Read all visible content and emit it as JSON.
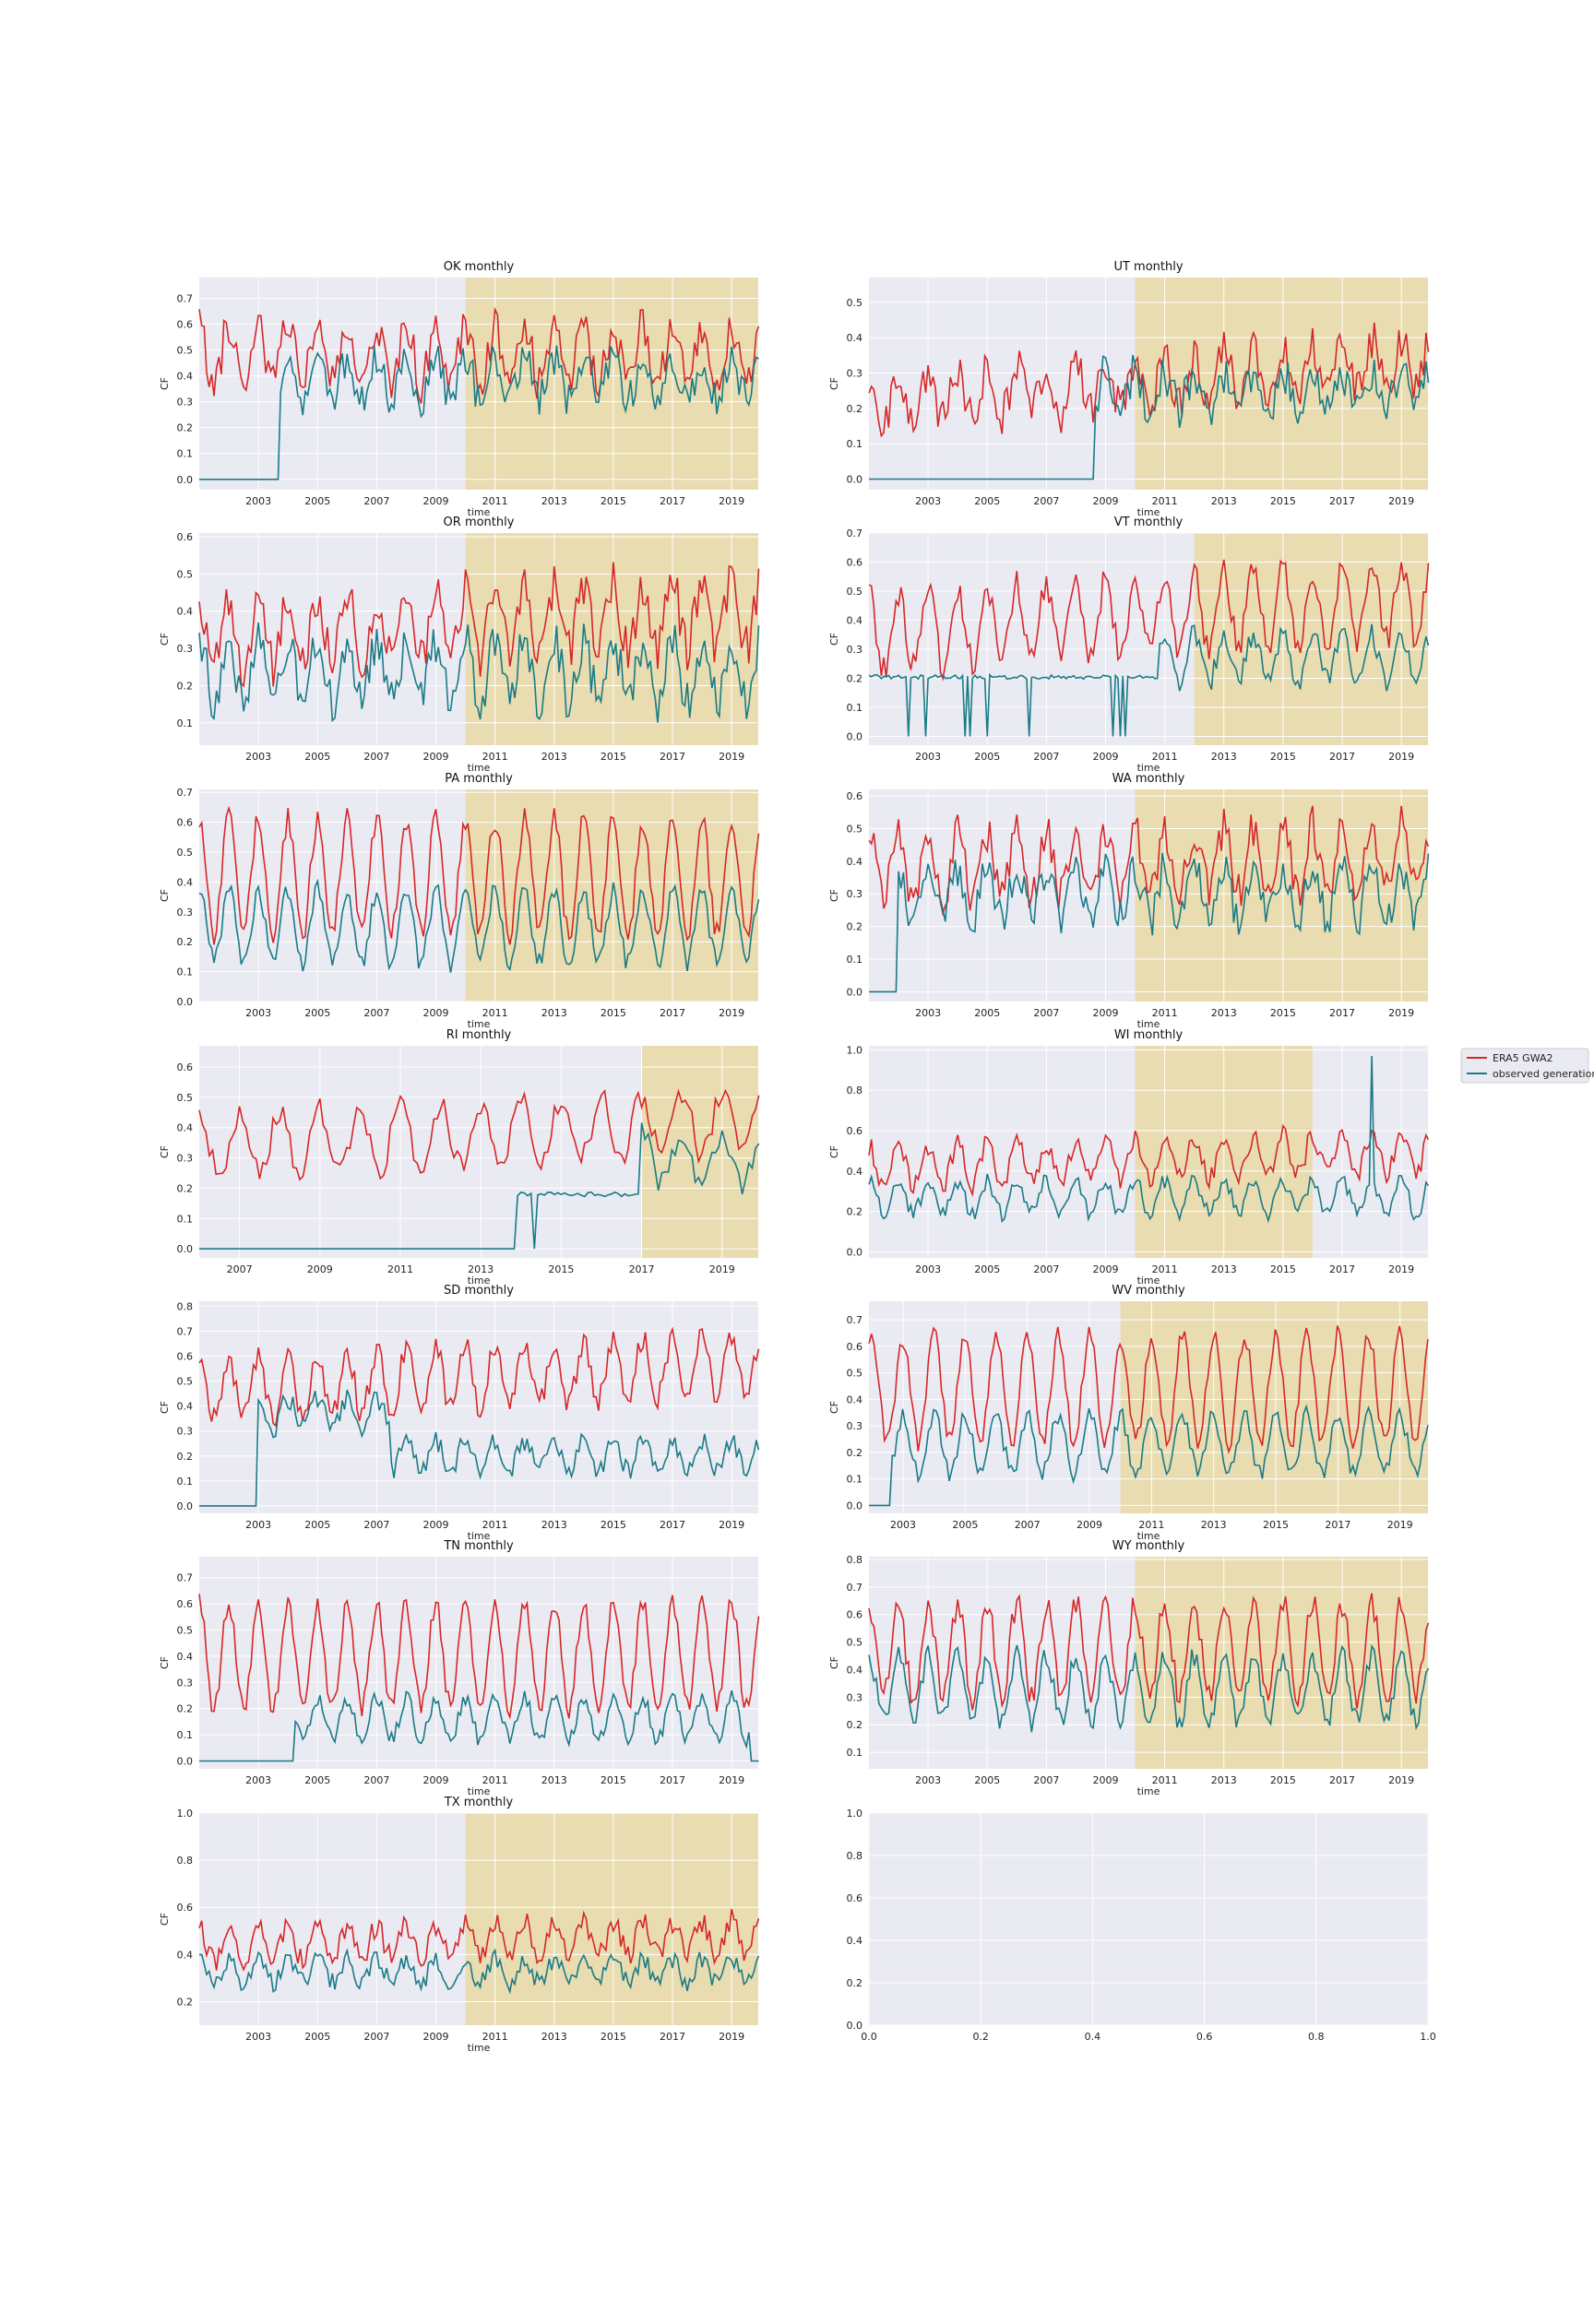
{
  "colors": {
    "era5": "#d62728",
    "observed": "#1a7b86",
    "highlight": "#e8dcb0",
    "axes_bg": "#eaeaf2",
    "grid": "#ffffff"
  },
  "legend": {
    "entries": [
      {
        "label": "ERA5 GWA2",
        "color": "#d62728"
      },
      {
        "label": "observed generation",
        "color": "#1a7b86"
      }
    ]
  },
  "chart_data": [
    {
      "type": "line",
      "title": "OK monthly",
      "xlabel": "time",
      "ylabel": "CF",
      "xlim": [
        2001.0,
        2019.9
      ],
      "ylim": [
        -0.04,
        0.78
      ],
      "yticks": [
        "0.0",
        "0.1",
        "0.2",
        "0.3",
        "0.4",
        "0.5",
        "0.6",
        "0.7"
      ],
      "xticks": [
        "2003",
        "2005",
        "2007",
        "2009",
        "2011",
        "2013",
        "2015",
        "2017",
        "2019"
      ],
      "highlight": [
        2010.0,
        2019.9
      ],
      "era5": {
        "base": 0.48,
        "amp": 0.11,
        "noise": 0.08,
        "trend": 0.0,
        "seed": 11
      },
      "observed": {
        "base": 0.39,
        "amp": 0.08,
        "noise": 0.07,
        "zero_until": 2003.75,
        "seed": 12
      },
      "series": [
        {
          "name": "ERA5 GWA2"
        },
        {
          "name": "observed generation"
        }
      ]
    },
    {
      "type": "line",
      "title": "UT monthly",
      "xlabel": "time",
      "ylabel": "CF",
      "xlim": [
        2001.0,
        2019.9
      ],
      "ylim": [
        -0.03,
        0.57
      ],
      "yticks": [
        "0.0",
        "0.1",
        "0.2",
        "0.3",
        "0.4",
        "0.5"
      ],
      "xticks": [
        "2003",
        "2005",
        "2007",
        "2009",
        "2011",
        "2013",
        "2015",
        "2017",
        "2019"
      ],
      "highlight": [
        2010.0,
        2019.9
      ],
      "era5": {
        "base": 0.22,
        "amp": 0.07,
        "noise": 0.06,
        "trend": 0.006,
        "seed": 21
      },
      "observed": {
        "base": 0.25,
        "amp": 0.05,
        "noise": 0.06,
        "zero_until": 2008.6,
        "seed": 22
      },
      "series": [
        {
          "name": "ERA5 GWA2"
        },
        {
          "name": "observed generation"
        }
      ]
    },
    {
      "type": "line",
      "title": "OR monthly",
      "xlabel": "time",
      "ylabel": "CF",
      "xlim": [
        2001.0,
        2019.9
      ],
      "ylim": [
        0.04,
        0.61
      ],
      "yticks": [
        "0.1",
        "0.2",
        "0.3",
        "0.4",
        "0.5",
        "0.6"
      ],
      "xticks": [
        "2003",
        "2005",
        "2007",
        "2009",
        "2011",
        "2013",
        "2015",
        "2017",
        "2019"
      ],
      "highlight": [
        2010.0,
        2019.9
      ],
      "era5": {
        "base": 0.34,
        "amp": 0.09,
        "noise": 0.06,
        "trend": 0.003,
        "seed": 31
      },
      "observed": {
        "base": 0.24,
        "amp": 0.08,
        "noise": 0.06,
        "seed": 32
      },
      "series": [
        {
          "name": "ERA5 GWA2"
        },
        {
          "name": "observed generation"
        }
      ]
    },
    {
      "type": "line",
      "title": "VT monthly",
      "xlabel": "time",
      "ylabel": "CF",
      "xlim": [
        2001.0,
        2019.9
      ],
      "ylim": [
        -0.03,
        0.7
      ],
      "yticks": [
        "0.0",
        "0.1",
        "0.2",
        "0.3",
        "0.4",
        "0.5",
        "0.6",
        "0.7"
      ],
      "xticks": [
        "2003",
        "2005",
        "2007",
        "2009",
        "2011",
        "2013",
        "2015",
        "2017",
        "2019"
      ],
      "highlight": [
        2012.0,
        2019.9
      ],
      "era5": {
        "base": 0.36,
        "amp": 0.13,
        "noise": 0.05,
        "trend": 0.006,
        "seed": 41
      },
      "observed": {
        "base": 0.27,
        "amp": 0.08,
        "noise": 0.04,
        "flat_until": 2010.8,
        "flat_value": 0.205,
        "seed": 42
      },
      "series": [
        {
          "name": "ERA5 GWA2"
        },
        {
          "name": "observed generation"
        }
      ]
    },
    {
      "type": "line",
      "title": "PA monthly",
      "xlabel": "time",
      "ylabel": "CF",
      "xlim": [
        2001.0,
        2019.9
      ],
      "ylim": [
        0.0,
        0.71
      ],
      "yticks": [
        "0.0",
        "0.1",
        "0.2",
        "0.3",
        "0.4",
        "0.5",
        "0.6",
        "0.7"
      ],
      "xticks": [
        "2003",
        "2005",
        "2007",
        "2009",
        "2011",
        "2013",
        "2015",
        "2017",
        "2019"
      ],
      "highlight": [
        2010.0,
        2019.9
      ],
      "era5": {
        "base": 0.42,
        "amp": 0.19,
        "noise": 0.04,
        "trend": 0.0,
        "seed": 51
      },
      "observed": {
        "base": 0.25,
        "amp": 0.12,
        "noise": 0.035,
        "seed": 52
      },
      "series": [
        {
          "name": "ERA5 GWA2"
        },
        {
          "name": "observed generation"
        }
      ]
    },
    {
      "type": "line",
      "title": "WA monthly",
      "xlabel": "time",
      "ylabel": "CF",
      "xlim": [
        2001.0,
        2019.9
      ],
      "ylim": [
        -0.03,
        0.62
      ],
      "yticks": [
        "0.0",
        "0.1",
        "0.2",
        "0.3",
        "0.4",
        "0.5",
        "0.6"
      ],
      "xticks": [
        "2003",
        "2005",
        "2007",
        "2009",
        "2011",
        "2013",
        "2015",
        "2017",
        "2019"
      ],
      "highlight": [
        2010.0,
        2019.9
      ],
      "era5": {
        "base": 0.38,
        "amp": 0.1,
        "noise": 0.06,
        "trend": 0.002,
        "seed": 61
      },
      "observed": {
        "base": 0.3,
        "amp": 0.08,
        "noise": 0.06,
        "zero_until": 2002.0,
        "seed": 62
      },
      "series": [
        {
          "name": "ERA5 GWA2"
        },
        {
          "name": "observed generation"
        }
      ]
    },
    {
      "type": "line",
      "title": "RI monthly",
      "xlabel": "time",
      "ylabel": "CF",
      "xlim": [
        2006.0,
        2019.9
      ],
      "ylim": [
        -0.03,
        0.67
      ],
      "yticks": [
        "0.0",
        "0.1",
        "0.2",
        "0.3",
        "0.4",
        "0.5",
        "0.6"
      ],
      "xticks": [
        "2007",
        "2009",
        "2011",
        "2013",
        "2015",
        "2017",
        "2019"
      ],
      "highlight": [
        2017.0,
        2019.9
      ],
      "era5": {
        "base": 0.34,
        "amp": 0.1,
        "noise": 0.04,
        "trend": 0.006,
        "seed": 71
      },
      "observed": {
        "base": 0.3,
        "amp": 0.08,
        "noise": 0.04,
        "zero_until": 2013.9,
        "flat_until": 2017.0,
        "flat_value": 0.18,
        "seed": 72
      },
      "series": [
        {
          "name": "ERA5 GWA2"
        },
        {
          "name": "observed generation"
        }
      ]
    },
    {
      "type": "line",
      "title": "WI monthly",
      "xlabel": "time",
      "ylabel": "CF",
      "xlim": [
        2001.0,
        2019.9
      ],
      "ylim": [
        -0.03,
        1.02
      ],
      "yticks": [
        "0.0",
        "0.2",
        "0.4",
        "0.6",
        "0.8",
        "1.0"
      ],
      "xticks": [
        "2003",
        "2005",
        "2007",
        "2009",
        "2011",
        "2013",
        "2015",
        "2017",
        "2019"
      ],
      "highlight": [
        2010.0,
        2016.0
      ],
      "era5": {
        "base": 0.42,
        "amp": 0.1,
        "noise": 0.05,
        "trend": 0.004,
        "seed": 81
      },
      "observed": {
        "base": 0.27,
        "amp": 0.08,
        "noise": 0.04,
        "seed": 82,
        "spike_at": 2018.0,
        "spike_value": 0.97
      },
      "series": [
        {
          "name": "ERA5 GWA2"
        },
        {
          "name": "observed generation"
        }
      ]
    },
    {
      "type": "line",
      "title": "SD monthly",
      "xlabel": "time",
      "ylabel": "CF",
      "xlim": [
        2001.0,
        2019.9
      ],
      "ylim": [
        -0.03,
        0.82
      ],
      "yticks": [
        "0.0",
        "0.1",
        "0.2",
        "0.3",
        "0.4",
        "0.5",
        "0.6",
        "0.7",
        "0.8"
      ],
      "xticks": [
        "2003",
        "2005",
        "2007",
        "2009",
        "2011",
        "2013",
        "2015",
        "2017",
        "2019"
      ],
      "highlight": [],
      "era5": {
        "base": 0.46,
        "amp": 0.12,
        "noise": 0.05,
        "trend": 0.006,
        "seed": 91
      },
      "observed": {
        "base": 0.2,
        "amp": 0.06,
        "noise": 0.04,
        "zero_until": 2003.0,
        "early_until": 2007.5,
        "early_base": 0.37,
        "seed": 92
      },
      "series": [
        {
          "name": "ERA5 GWA2"
        },
        {
          "name": "observed generation"
        }
      ]
    },
    {
      "type": "line",
      "title": "WV monthly",
      "xlabel": "time",
      "ylabel": "CF",
      "xlim": [
        2001.9,
        2019.9
      ],
      "ylim": [
        -0.03,
        0.77
      ],
      "yticks": [
        "0.0",
        "0.1",
        "0.2",
        "0.3",
        "0.4",
        "0.5",
        "0.6",
        "0.7"
      ],
      "xticks": [
        "2003",
        "2005",
        "2007",
        "2009",
        "2011",
        "2013",
        "2015",
        "2017",
        "2019"
      ],
      "highlight": [
        2010.0,
        2019.9
      ],
      "era5": {
        "base": 0.44,
        "amp": 0.2,
        "noise": 0.04,
        "trend": 0.0,
        "seed": 101
      },
      "observed": {
        "base": 0.23,
        "amp": 0.11,
        "noise": 0.035,
        "zero_until": 2002.6,
        "seed": 102
      },
      "series": [
        {
          "name": "ERA5 GWA2"
        },
        {
          "name": "observed generation"
        }
      ]
    },
    {
      "type": "line",
      "title": "TN monthly",
      "xlabel": "time",
      "ylabel": "CF",
      "xlim": [
        2001.0,
        2019.9
      ],
      "ylim": [
        -0.03,
        0.78
      ],
      "yticks": [
        "0.0",
        "0.1",
        "0.2",
        "0.3",
        "0.4",
        "0.5",
        "0.6",
        "0.7"
      ],
      "xticks": [
        "2003",
        "2005",
        "2007",
        "2009",
        "2011",
        "2013",
        "2015",
        "2017",
        "2019"
      ],
      "highlight": [],
      "era5": {
        "base": 0.4,
        "amp": 0.2,
        "noise": 0.04,
        "trend": 0.0,
        "seed": 111
      },
      "observed": {
        "base": 0.16,
        "amp": 0.08,
        "noise": 0.03,
        "zero_until": 2004.2,
        "seed": 112,
        "zero_after": 2019.6
      },
      "series": [
        {
          "name": "ERA5 GWA2"
        },
        {
          "name": "observed generation"
        }
      ]
    },
    {
      "type": "line",
      "title": "WY monthly",
      "xlabel": "time",
      "ylabel": "CF",
      "xlim": [
        2001.0,
        2019.9
      ],
      "ylim": [
        0.04,
        0.81
      ],
      "yticks": [
        "0.1",
        "0.2",
        "0.3",
        "0.4",
        "0.5",
        "0.6",
        "0.7",
        "0.8"
      ],
      "xticks": [
        "2003",
        "2005",
        "2007",
        "2009",
        "2011",
        "2013",
        "2015",
        "2017",
        "2019"
      ],
      "highlight": [
        2010.0,
        2019.9
      ],
      "era5": {
        "base": 0.47,
        "amp": 0.17,
        "noise": 0.05,
        "trend": 0.0,
        "seed": 121
      },
      "observed": {
        "base": 0.33,
        "amp": 0.12,
        "noise": 0.04,
        "seed": 122
      },
      "series": [
        {
          "name": "ERA5 GWA2"
        },
        {
          "name": "observed generation"
        }
      ]
    },
    {
      "type": "line",
      "title": "TX monthly",
      "xlabel": "time",
      "ylabel": "CF",
      "xlim": [
        2001.0,
        2019.9
      ],
      "ylim": [
        0.1,
        1.0
      ],
      "yticks": [
        "0.2",
        "0.4",
        "0.6",
        "0.8",
        "1.0"
      ],
      "xticks": [
        "2003",
        "2005",
        "2007",
        "2009",
        "2011",
        "2013",
        "2015",
        "2017",
        "2019"
      ],
      "highlight": [
        2010.0,
        2019.9
      ],
      "era5": {
        "base": 0.44,
        "amp": 0.07,
        "noise": 0.05,
        "trend": 0.002,
        "seed": 131
      },
      "observed": {
        "base": 0.33,
        "amp": 0.05,
        "noise": 0.04,
        "seed": 132
      },
      "series": [
        {
          "name": "ERA5 GWA2"
        },
        {
          "name": "observed generation"
        }
      ]
    },
    {
      "type": "line",
      "title": "",
      "xlabel": "",
      "ylabel": "",
      "xlim": [
        0.0,
        1.0
      ],
      "ylim": [
        0.0,
        1.0
      ],
      "yticks": [
        "0.0",
        "0.2",
        "0.4",
        "0.6",
        "0.8",
        "1.0"
      ],
      "xticks": [
        "0.0",
        "0.2",
        "0.4",
        "0.6",
        "0.8",
        "1.0"
      ],
      "highlight": [],
      "empty": true
    }
  ]
}
